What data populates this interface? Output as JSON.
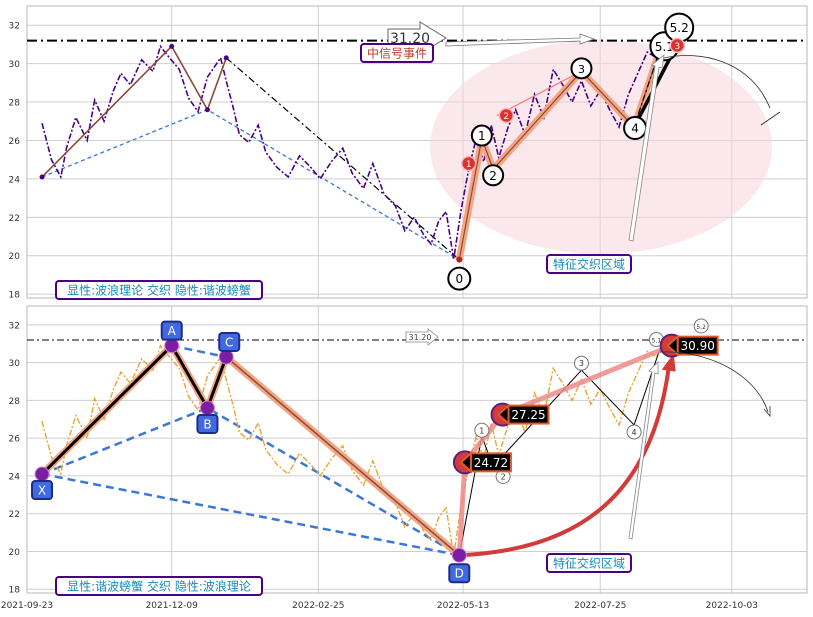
{
  "colors": {
    "grid": "#cfcfcf",
    "frame": "#b8b8b8",
    "price_top": "#4b0082",
    "price_bottom": "#e8a631",
    "wave_fill": "#f4a582",
    "wave_edge": "#8b4a3c",
    "dash_blue": "#3a78d6",
    "ellipse": "#f6d6dc",
    "label_box_fill": "#ffffff",
    "label_box_edge": "#4b0082",
    "label_text_teal": "#1a8ab5",
    "hl_red": "#d33a3a",
    "hl_orange": "#e05a2a",
    "abcd_fill": "#4169e1"
  },
  "chart_data": [
    {
      "type": "line",
      "title": "",
      "ylim": [
        17.8,
        33
      ],
      "yticks": [
        18,
        20,
        22,
        24,
        26,
        28,
        30,
        32
      ],
      "x_range": [
        "2021-09-23",
        "2022-11-12"
      ],
      "x_ticks": [
        "2021-09-23",
        "2021-12-09",
        "2022-02-25",
        "2022-05-13",
        "2022-07-25",
        "2022-10-03"
      ],
      "price_series": {
        "style": "dash-dot",
        "x": [
          "2021-10-01",
          "2021-10-06",
          "2021-10-11",
          "2021-10-14",
          "2021-10-19",
          "2021-10-25",
          "2021-10-29",
          "2021-11-03",
          "2021-11-08",
          "2021-11-12",
          "2021-11-17",
          "2021-11-23",
          "2021-11-29",
          "2021-12-03",
          "2021-12-07",
          "2021-12-13",
          "2021-12-18",
          "2021-12-23",
          "2021-12-28",
          "2022-01-04",
          "2022-01-07",
          "2022-01-11",
          "2022-01-14",
          "2022-01-19",
          "2022-01-24",
          "2022-01-28",
          "2022-02-03",
          "2022-02-09",
          "2022-02-15",
          "2022-02-21",
          "2022-02-26",
          "2022-03-04",
          "2022-03-10",
          "2022-03-15",
          "2022-03-21",
          "2022-03-26",
          "2022-04-01",
          "2022-04-07",
          "2022-04-12",
          "2022-04-17",
          "2022-04-22",
          "2022-04-26",
          "2022-04-30",
          "2022-05-04",
          "2022-05-08",
          "2022-05-12",
          "2022-05-16",
          "2022-05-20",
          "2022-05-24",
          "2022-05-28",
          "2022-06-01",
          "2022-06-06",
          "2022-06-10",
          "2022-06-15",
          "2022-06-20",
          "2022-06-25",
          "2022-06-30",
          "2022-07-05",
          "2022-07-10",
          "2022-07-15",
          "2022-07-20",
          "2022-07-25",
          "2022-07-30",
          "2022-08-04",
          "2022-08-09",
          "2022-08-14",
          "2022-08-19",
          "2022-08-24",
          "2022-08-29",
          "2022-09-03",
          "2022-09-07"
        ],
        "y": [
          26.9,
          25.0,
          24.1,
          25.6,
          27.2,
          26.0,
          28.1,
          27.0,
          28.6,
          29.5,
          28.9,
          30.2,
          29.6,
          30.9,
          30.4,
          29.7,
          28.2,
          27.5,
          29.3,
          30.3,
          29.1,
          27.6,
          26.3,
          25.9,
          26.8,
          25.4,
          24.6,
          24.1,
          25.2,
          24.6,
          24.0,
          24.9,
          25.6,
          24.3,
          23.5,
          24.8,
          23.2,
          22.6,
          21.3,
          22.0,
          21.1,
          20.6,
          21.8,
          22.3,
          19.8,
          22.4,
          24.5,
          26.1,
          24.9,
          26.8,
          25.1,
          26.7,
          27.6,
          26.3,
          28.4,
          27.2,
          29.7,
          28.9,
          28.0,
          29.1,
          27.8,
          28.6,
          27.6,
          26.7,
          28.4,
          29.5,
          30.6,
          30.3,
          31.1,
          30.5,
          31.0
        ]
      },
      "wave_points": [
        {
          "label": "",
          "date": "2021-10-01",
          "value": 24.1
        },
        {
          "label": "",
          "date": "2021-12-09",
          "value": 30.9
        },
        {
          "label": "",
          "date": "2021-12-28",
          "value": 27.6
        },
        {
          "label": "",
          "date": "2022-01-07",
          "value": 30.3
        },
        {
          "label": "0",
          "date": "2022-05-11",
          "value": 19.8
        },
        {
          "label": "1",
          "date": "2022-05-23",
          "value": 26.1
        },
        {
          "label": "2",
          "date": "2022-05-29",
          "value": 24.5
        },
        {
          "label": "3",
          "date": "2022-07-15",
          "value": 29.6
        },
        {
          "label": "4",
          "date": "2022-08-12",
          "value": 26.7
        },
        {
          "label": "5.1",
          "date": "2022-08-26",
          "value": 30.8
        },
        {
          "label": "5.2",
          "date": "2022-09-05",
          "value": 31.2
        }
      ],
      "hline": {
        "value": 31.2,
        "label": "31.20"
      },
      "event_label": "中信号事件",
      "small_markers": [
        "1",
        "2",
        "3"
      ],
      "zone_label": "特征交织区域",
      "corner_label": "显性:波浪理论 交织 隐性:谐波螃蟹"
    },
    {
      "type": "line",
      "title": "",
      "ylim": [
        17.8,
        33
      ],
      "yticks": [
        18,
        20,
        22,
        24,
        26,
        28,
        30,
        32
      ],
      "x_range": [
        "2021-09-23",
        "2022-11-12"
      ],
      "x_ticks": [
        "2021-09-23",
        "2021-12-09",
        "2022-02-25",
        "2022-05-13",
        "2022-07-25",
        "2022-10-03"
      ],
      "xabcd_points": [
        {
          "label": "X",
          "date": "2021-10-01",
          "value": 24.1
        },
        {
          "label": "A",
          "date": "2021-12-09",
          "value": 30.9
        },
        {
          "label": "B",
          "date": "2021-12-28",
          "value": 27.6
        },
        {
          "label": "C",
          "date": "2022-01-07",
          "value": 30.3
        },
        {
          "label": "D",
          "date": "2022-05-11",
          "value": 19.8
        }
      ],
      "wave_points": [
        {
          "label": "1",
          "date": "2022-05-23",
          "value": 26.1
        },
        {
          "label": "2",
          "date": "2022-05-29",
          "value": 24.5
        },
        {
          "label": "3",
          "date": "2022-07-15",
          "value": 29.6
        },
        {
          "label": "4",
          "date": "2022-08-12",
          "value": 26.7
        },
        {
          "label": "5.1",
          "date": "2022-08-26",
          "value": 30.8
        },
        {
          "label": "5.2",
          "date": "2022-09-05",
          "value": 31.2
        }
      ],
      "highlights": [
        {
          "label": "24.72",
          "date": "2022-05-14",
          "value": 24.72
        },
        {
          "label": "27.25",
          "date": "2022-06-03",
          "value": 27.25
        },
        {
          "label": "30.90",
          "date": "2022-09-01",
          "value": 30.9
        }
      ],
      "hline": {
        "value": 31.2,
        "label": "31.20"
      },
      "zone_label": "特征交织区域",
      "corner_label": "显性:谐波螃蟹 交织 隐性:波浪理论"
    }
  ]
}
